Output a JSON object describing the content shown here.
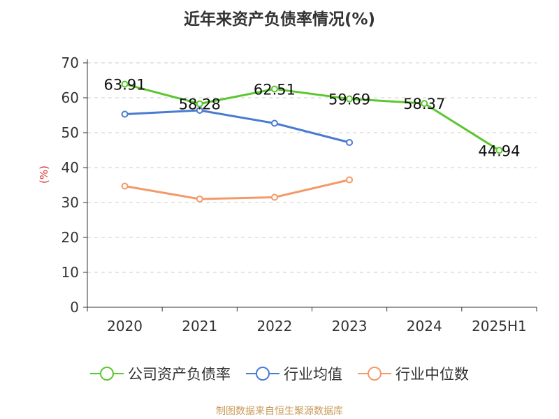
{
  "chart_data": {
    "type": "line",
    "title": "近年来资产负债率情况(%)",
    "ylabel": "(%)",
    "ylim": [
      0,
      70
    ],
    "yticks": [
      0,
      10,
      20,
      30,
      40,
      50,
      60,
      70
    ],
    "categories": [
      "2020",
      "2021",
      "2022",
      "2023",
      "2024",
      "2025H1"
    ],
    "grid": true,
    "legend": "bottom",
    "series": [
      {
        "name": "公司资产负债率",
        "color": "#5bc72e",
        "values": [
          63.91,
          58.28,
          62.51,
          59.69,
          58.37,
          44.94
        ],
        "labels": [
          "63.91",
          "58.28",
          "62.51",
          "59.69",
          "58.37",
          "44.94"
        ]
      },
      {
        "name": "行业均值",
        "color": "#4a7bd1",
        "values": [
          55.3,
          56.4,
          52.7,
          47.2,
          null,
          null
        ]
      },
      {
        "name": "行业中位数",
        "color": "#f39a6a",
        "values": [
          34.7,
          31.0,
          31.5,
          36.5,
          null,
          null
        ]
      }
    ]
  },
  "source": "制图数据来自恒生聚源数据库"
}
